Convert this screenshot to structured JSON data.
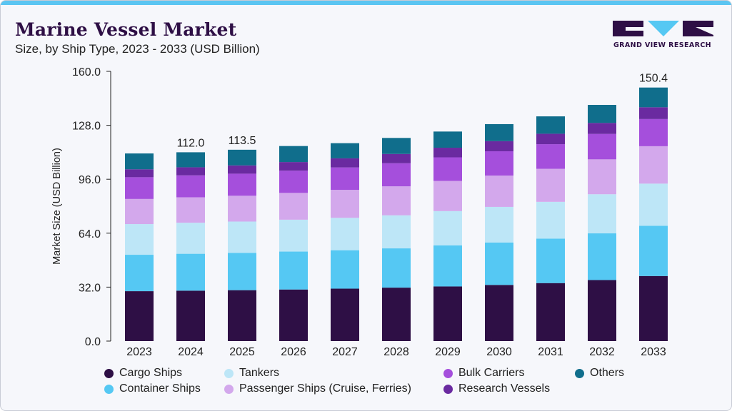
{
  "header": {
    "title": "Marine Vessel Market",
    "subtitle": "Size, by Ship Type, 2023 - 2033 (USD Billion)",
    "brand": "GRAND VIEW RESEARCH"
  },
  "colors": {
    "cargo": "#2e0f45",
    "container": "#55c8f3",
    "tankers": "#bde6f7",
    "passenger": "#d3a8ec",
    "bulk": "#a54fdc",
    "research": "#6a2aa0",
    "others": "#106e8c",
    "accent": "#5bc5f2"
  },
  "chart_data": {
    "type": "bar",
    "stacked": true,
    "title": "Marine Vessel Market",
    "subtitle": "Size, by Ship Type, 2023 - 2033 (USD Billion)",
    "xlabel": "",
    "ylabel": "Market Size (USD Billion)",
    "ylim": [
      0,
      160
    ],
    "yticks": [
      "0.0",
      "32.0",
      "64.0",
      "96.0",
      "128.0",
      "160.0"
    ],
    "grid": false,
    "legend_position": "bottom",
    "categories": [
      "2023",
      "2024",
      "2025",
      "2026",
      "2027",
      "2028",
      "2029",
      "2030",
      "2031",
      "2032",
      "2033"
    ],
    "series": [
      {
        "name": "Cargo Ships",
        "values": [
          29.6,
          29.9,
          30.2,
          30.6,
          31.1,
          31.7,
          32.4,
          33.3,
          34.4,
          36.2,
          38.6
        ]
      },
      {
        "name": "Container Ships",
        "values": [
          21.6,
          21.9,
          22.1,
          22.5,
          22.8,
          23.3,
          24.4,
          25.2,
          26.4,
          27.7,
          29.8
        ]
      },
      {
        "name": "Tankers",
        "values": [
          18.2,
          18.4,
          18.6,
          18.9,
          19.2,
          19.6,
          20.3,
          21.1,
          21.8,
          23.2,
          25.0
        ]
      },
      {
        "name": "Passenger Ships (Cruise, Ferries)",
        "values": [
          14.9,
          15.1,
          15.3,
          15.9,
          16.6,
          17.2,
          17.9,
          18.6,
          19.6,
          20.7,
          22.2
        ]
      },
      {
        "name": "Bulk Carriers",
        "values": [
          12.9,
          13.0,
          13.1,
          13.2,
          13.3,
          13.7,
          14.0,
          14.4,
          14.6,
          15.1,
          16.1
        ]
      },
      {
        "name": "Research Vessels",
        "values": [
          4.7,
          4.8,
          4.9,
          5.1,
          5.4,
          5.5,
          5.7,
          6.0,
          6.2,
          6.5,
          7.0
        ]
      },
      {
        "name": "Others",
        "values": [
          9.4,
          8.9,
          9.3,
          9.5,
          9.0,
          9.5,
          9.6,
          10.1,
          10.3,
          10.7,
          11.7
        ]
      }
    ],
    "data_labels": [
      {
        "category": "2024",
        "text": "112.0"
      },
      {
        "category": "2025",
        "text": "113.5"
      },
      {
        "category": "2033",
        "text": "150.4"
      }
    ]
  },
  "legend": {
    "items": [
      {
        "label": "Cargo Ships",
        "key": "cargo"
      },
      {
        "label": "Container Ships",
        "key": "container"
      },
      {
        "label": "Tankers",
        "key": "tankers"
      },
      {
        "label": "Passenger Ships (Cruise, Ferries)",
        "key": "passenger"
      },
      {
        "label": "Bulk Carriers",
        "key": "bulk"
      },
      {
        "label": "Research Vessels",
        "key": "research"
      },
      {
        "label": "Others",
        "key": "others"
      }
    ]
  }
}
